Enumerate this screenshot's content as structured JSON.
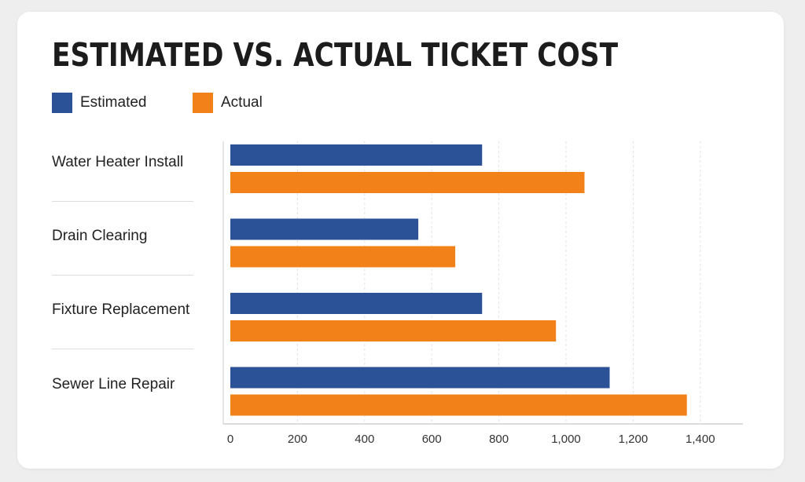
{
  "chart_data": {
    "type": "bar",
    "orientation": "horizontal",
    "title": "ESTIMATED VS. ACTUAL TICKET COST",
    "categories": [
      "Water Heater Install",
      "Drain Clearing",
      "Fixture Replacement",
      "Sewer Line Repair"
    ],
    "series": [
      {
        "name": "Estimated",
        "color": "#2b5297",
        "values": [
          750,
          560,
          750,
          1130
        ]
      },
      {
        "name": "Actual",
        "color": "#f38119",
        "values": [
          1055,
          670,
          970,
          1360
        ]
      }
    ],
    "x_ticks": [
      0,
      200,
      400,
      600,
      800,
      1000,
      1200,
      1400
    ],
    "x_tick_labels": [
      "0",
      "200",
      "400",
      "600",
      "800",
      "1,000",
      "1,200",
      "1,400"
    ],
    "xlim": [
      0,
      1400
    ],
    "grid": "vertical dashed",
    "legend_position": "top-left"
  }
}
